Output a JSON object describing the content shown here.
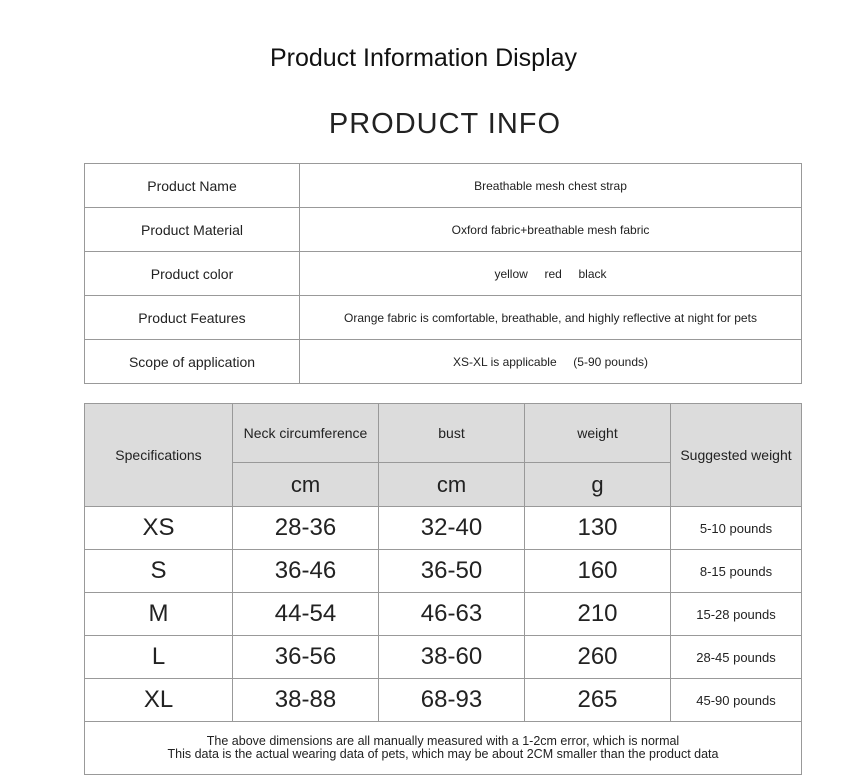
{
  "title": "Product Information Display",
  "subtitle": "PRODUCT INFO",
  "info": [
    {
      "label": "Product Name",
      "value": "Breathable mesh chest strap"
    },
    {
      "label": "Product Material",
      "value": "Oxford fabric+breathable mesh fabric"
    },
    {
      "label": "Product color",
      "value": "yellow     red     black"
    },
    {
      "label": "Product Features",
      "value": "Orange fabric is comfortable, breathable, and highly reflective at night for pets"
    },
    {
      "label": "Scope of application",
      "value": "XS-XL is applicable     (5-90 pounds)"
    }
  ],
  "spec": {
    "headers": {
      "size": "Specifications",
      "neck": "Neck circumference",
      "bust": "bust",
      "weight": "weight",
      "suggested": "Suggested weight",
      "neck_unit": "cm",
      "bust_unit": "cm",
      "weight_unit": "g"
    },
    "rows": [
      {
        "size": "XS",
        "neck": "28-36",
        "bust": "32-40",
        "weight": "130",
        "suggested": "5-10 pounds"
      },
      {
        "size": "S",
        "neck": "36-46",
        "bust": "36-50",
        "weight": "160",
        "suggested": "8-15 pounds"
      },
      {
        "size": "M",
        "neck": "44-54",
        "bust": "46-63",
        "weight": "210",
        "suggested": "15-28 pounds"
      },
      {
        "size": "L",
        "neck": "36-56",
        "bust": "38-60",
        "weight": "260",
        "suggested": "28-45 pounds"
      },
      {
        "size": "XL",
        "neck": "38-88",
        "bust": "68-93",
        "weight": "265",
        "suggested": "45-90 pounds"
      }
    ],
    "note1": "The above dimensions are all manually measured with a 1-2cm error, which is normal",
    "note2": "This data is the actual wearing data of pets, which may be about 2CM smaller than the product data"
  }
}
